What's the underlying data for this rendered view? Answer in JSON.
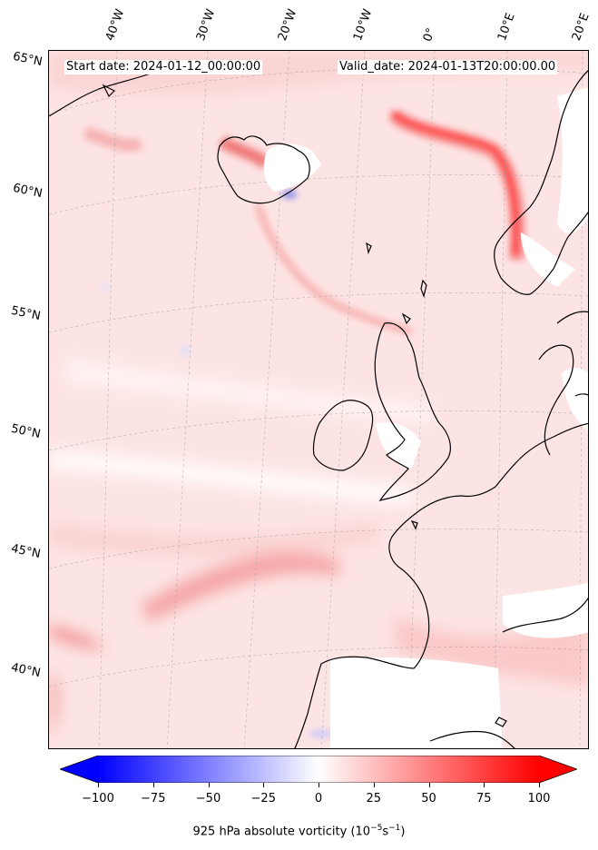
{
  "header": {
    "start_date": "Start date: 2024-01-12_00:00:00",
    "valid_date": "Valid_date: 2024-01-13T20:00:00.00"
  },
  "map": {
    "longitude_labels": [
      "40°W",
      "30°W",
      "20°W",
      "10°W",
      "0°",
      "10°E",
      "20°E"
    ],
    "latitude_labels": [
      "65°N",
      "60°N",
      "55°N",
      "50°N",
      "45°N",
      "40°N"
    ],
    "field_colors": {
      "negative": "#0000ff",
      "zero": "#ffffff",
      "positive": "#ff0000",
      "background": "#fde4e4",
      "coast": "#000000"
    }
  },
  "colorbar": {
    "label_main": "925 hPa absolute vorticity (10",
    "label_exp1": "−5",
    "label_mid": "s",
    "label_exp2": "−1",
    "label_end": ")",
    "ticks": [
      "−100",
      "−75",
      "−50",
      "−25",
      "0",
      "25",
      "50",
      "75",
      "100"
    ],
    "min": -100,
    "max": 100,
    "colors": {
      "low": "#0000ff",
      "mid": "#ffffff",
      "high": "#ff0000"
    }
  }
}
